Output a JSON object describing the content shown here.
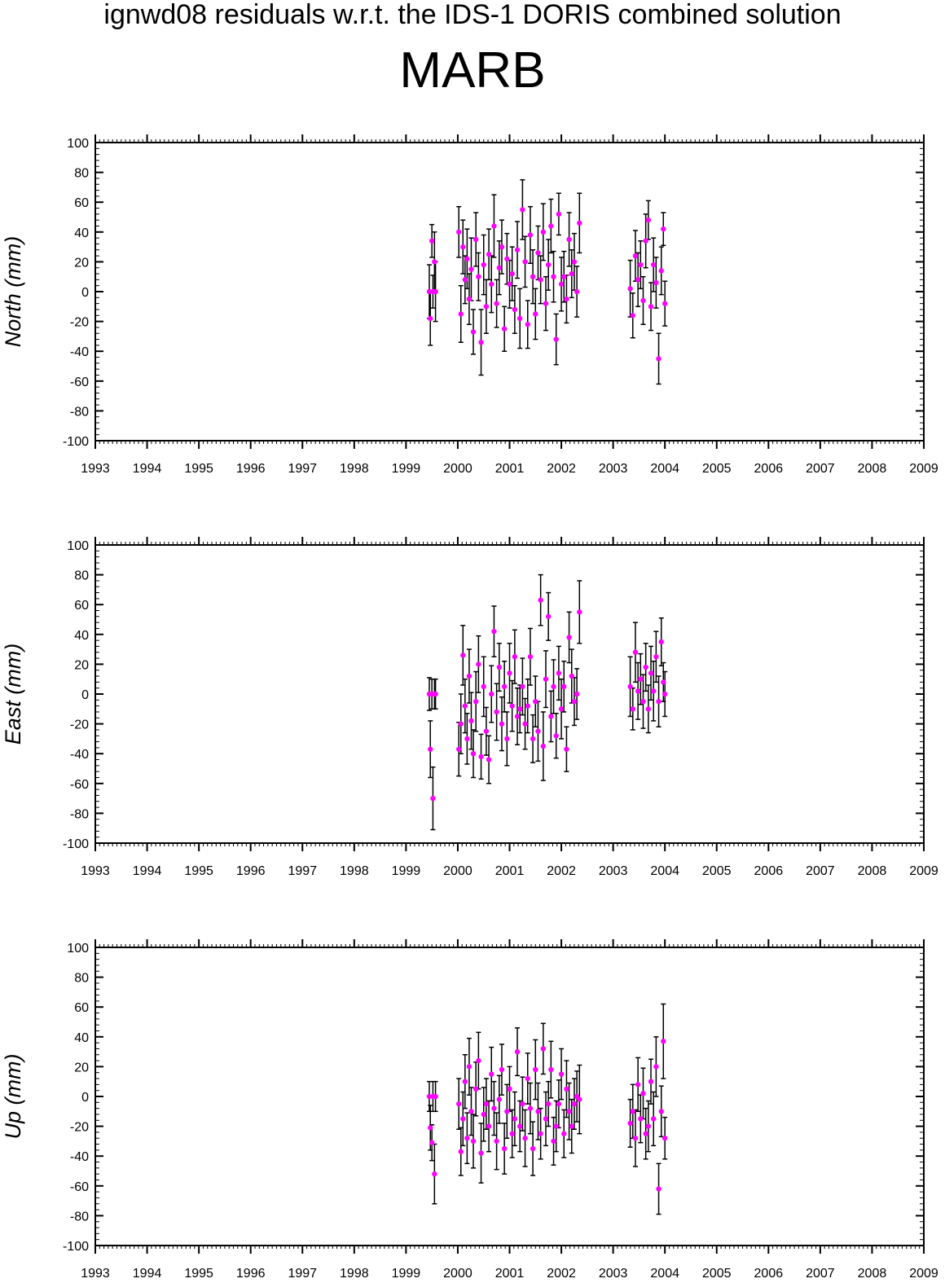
{
  "title": "ignwd08 residuals w.r.t. the IDS-1 DORIS combined solution",
  "station": "MARB",
  "colors": {
    "point": "#ff00ff",
    "errorbar": "#000000",
    "axis": "#000000"
  },
  "chart_data": [
    {
      "type": "scatter",
      "ylabel": "North (mm)",
      "xlim": [
        1993,
        2009
      ],
      "ylim": [
        -100,
        100
      ],
      "xticks": [
        "1993",
        "1994",
        "1995",
        "1996",
        "1997",
        "1998",
        "1999",
        "2000",
        "2001",
        "2002",
        "2003",
        "2004",
        "2005",
        "2006",
        "2007",
        "2008",
        "2009"
      ],
      "yticks": [
        "100",
        "80",
        "60",
        "40",
        "20",
        "0",
        "-20",
        "-40",
        "-60",
        "-80",
        "-100"
      ],
      "error_bars": true,
      "series": [
        {
          "x": [
            1999.45,
            1999.47,
            1999.5,
            1999.52,
            1999.55,
            1999.57,
            2000.02,
            2000.06,
            2000.1,
            2000.14,
            2000.18,
            2000.22,
            2000.26,
            2000.3,
            2000.35,
            2000.4,
            2000.45,
            2000.5,
            2000.55,
            2000.6,
            2000.65,
            2000.7,
            2000.75,
            2000.8,
            2000.85,
            2000.9,
            2000.95,
            2001.0,
            2001.05,
            2001.1,
            2001.15,
            2001.2,
            2001.25,
            2001.3,
            2001.35,
            2001.4,
            2001.45,
            2001.5,
            2001.55,
            2001.6,
            2001.65,
            2001.7,
            2001.75,
            2001.8,
            2001.85,
            2001.9,
            2001.95,
            2002.0,
            2002.05,
            2002.1,
            2002.15,
            2002.2,
            2002.25,
            2002.3,
            2002.35,
            2003.33,
            2003.38,
            2003.43,
            2003.48,
            2003.53,
            2003.58,
            2003.63,
            2003.68,
            2003.73,
            2003.78,
            2003.83,
            2003.88,
            2003.93,
            2003.97,
            2004.0
          ],
          "y": [
            0,
            -18,
            34,
            0,
            20,
            0,
            40,
            -15,
            30,
            8,
            22,
            -5,
            15,
            -27,
            35,
            10,
            -34,
            18,
            -10,
            25,
            5,
            44,
            -8,
            16,
            30,
            -25,
            22,
            5,
            12,
            -12,
            28,
            -18,
            55,
            20,
            -22,
            38,
            10,
            -15,
            26,
            8,
            40,
            -8,
            18,
            44,
            10,
            -32,
            52,
            5,
            10,
            -5,
            35,
            12,
            20,
            0,
            46,
            2,
            -16,
            24,
            8,
            18,
            -6,
            34,
            48,
            -10,
            18,
            6,
            -45,
            14,
            42,
            -8
          ],
          "err": [
            18,
            18,
            11,
            11,
            20,
            20,
            17,
            19,
            18,
            16,
            20,
            17,
            21,
            15,
            18,
            16,
            22,
            20,
            18,
            17,
            19,
            21,
            16,
            18,
            18,
            15,
            17,
            16,
            18,
            16,
            19,
            20,
            20,
            17,
            16,
            19,
            18,
            17,
            18,
            16,
            19,
            18,
            17,
            18,
            17,
            17,
            14,
            18,
            17,
            16,
            18,
            16,
            19,
            17,
            20,
            19,
            15,
            17,
            18,
            16,
            16,
            18,
            13,
            16,
            18,
            17,
            17,
            16,
            11,
            15
          ]
        }
      ]
    },
    {
      "type": "scatter",
      "ylabel": "East (mm)",
      "xlim": [
        1993,
        2009
      ],
      "ylim": [
        -100,
        100
      ],
      "xticks": [
        "1993",
        "1994",
        "1995",
        "1996",
        "1997",
        "1998",
        "1999",
        "2000",
        "2001",
        "2002",
        "2003",
        "2004",
        "2005",
        "2006",
        "2007",
        "2008",
        "2009"
      ],
      "yticks": [
        "100",
        "80",
        "60",
        "40",
        "20",
        "0",
        "-20",
        "-40",
        "-60",
        "-80",
        "-100"
      ],
      "error_bars": true,
      "series": [
        {
          "x": [
            1999.45,
            1999.47,
            1999.5,
            1999.52,
            1999.55,
            1999.57,
            2000.02,
            2000.06,
            2000.1,
            2000.14,
            2000.18,
            2000.22,
            2000.26,
            2000.3,
            2000.35,
            2000.4,
            2000.45,
            2000.5,
            2000.55,
            2000.6,
            2000.65,
            2000.7,
            2000.75,
            2000.8,
            2000.85,
            2000.9,
            2000.95,
            2001.0,
            2001.05,
            2001.1,
            2001.15,
            2001.2,
            2001.25,
            2001.3,
            2001.35,
            2001.4,
            2001.45,
            2001.5,
            2001.55,
            2001.6,
            2001.65,
            2001.7,
            2001.75,
            2001.8,
            2001.85,
            2001.9,
            2001.95,
            2002.0,
            2002.05,
            2002.1,
            2002.15,
            2002.2,
            2002.25,
            2002.3,
            2002.35,
            2003.33,
            2003.38,
            2003.43,
            2003.48,
            2003.53,
            2003.58,
            2003.63,
            2003.68,
            2003.73,
            2003.78,
            2003.83,
            2003.88,
            2003.93,
            2003.97,
            2004.0
          ],
          "y": [
            0,
            -37,
            0,
            -70,
            0,
            0,
            -37,
            -20,
            26,
            -8,
            -30,
            12,
            -18,
            -40,
            -5,
            20,
            -42,
            5,
            -25,
            -44,
            0,
            42,
            -12,
            18,
            -20,
            5,
            -30,
            14,
            -8,
            25,
            -15,
            -10,
            5,
            -20,
            -8,
            25,
            -30,
            -5,
            -25,
            63,
            -35,
            10,
            52,
            -15,
            5,
            -28,
            14,
            -10,
            5,
            -37,
            38,
            12,
            -5,
            0,
            55,
            5,
            -10,
            28,
            2,
            10,
            -5,
            18,
            -10,
            14,
            2,
            25,
            -5,
            35,
            8,
            0
          ],
          "err": [
            11,
            19,
            10,
            21,
            10,
            10,
            18,
            20,
            20,
            18,
            17,
            18,
            19,
            16,
            20,
            19,
            15,
            20,
            16,
            16,
            19,
            17,
            19,
            16,
            18,
            17,
            18,
            20,
            17,
            18,
            19,
            16,
            19,
            17,
            18,
            19,
            16,
            17,
            20,
            17,
            23,
            19,
            16,
            17,
            18,
            15,
            18,
            20,
            17,
            15,
            17,
            18,
            16,
            17,
            21,
            20,
            14,
            20,
            19,
            17,
            18,
            16,
            16,
            18,
            20,
            17,
            17,
            16,
            13,
            15
          ]
        }
      ]
    },
    {
      "type": "scatter",
      "ylabel": "Up (mm)",
      "xlim": [
        1993,
        2009
      ],
      "ylim": [
        -100,
        100
      ],
      "xticks": [
        "1993",
        "1994",
        "1995",
        "1996",
        "1997",
        "1998",
        "1999",
        "2000",
        "2001",
        "2002",
        "2003",
        "2004",
        "2005",
        "2006",
        "2007",
        "2008",
        "2009"
      ],
      "yticks": [
        "100",
        "80",
        "60",
        "40",
        "20",
        "0",
        "-20",
        "-40",
        "-60",
        "-80",
        "-100"
      ],
      "error_bars": true,
      "series": [
        {
          "x": [
            1999.45,
            1999.47,
            1999.5,
            1999.52,
            1999.55,
            1999.57,
            2000.02,
            2000.06,
            2000.1,
            2000.14,
            2000.18,
            2000.22,
            2000.26,
            2000.3,
            2000.35,
            2000.4,
            2000.45,
            2000.5,
            2000.55,
            2000.6,
            2000.65,
            2000.7,
            2000.75,
            2000.8,
            2000.85,
            2000.9,
            2000.95,
            2001.0,
            2001.05,
            2001.1,
            2001.15,
            2001.2,
            2001.25,
            2001.3,
            2001.35,
            2001.4,
            2001.45,
            2001.5,
            2001.55,
            2001.6,
            2001.65,
            2001.7,
            2001.75,
            2001.8,
            2001.85,
            2001.9,
            2001.95,
            2002.0,
            2002.05,
            2002.1,
            2002.15,
            2002.2,
            2002.25,
            2002.3,
            2002.35,
            2003.33,
            2003.38,
            2003.43,
            2003.48,
            2003.53,
            2003.58,
            2003.63,
            2003.68,
            2003.73,
            2003.78,
            2003.83,
            2003.88,
            2003.93,
            2003.97,
            2004.0
          ],
          "y": [
            0,
            -21,
            -31,
            0,
            -52,
            0,
            -5,
            -37,
            -15,
            10,
            -28,
            20,
            -10,
            -30,
            5,
            24,
            -38,
            -12,
            -5,
            -20,
            15,
            -8,
            -30,
            -2,
            18,
            -35,
            -10,
            5,
            -25,
            -15,
            30,
            -20,
            -5,
            -28,
            12,
            -8,
            -35,
            18,
            -10,
            -25,
            32,
            -15,
            -5,
            18,
            -30,
            -20,
            -5,
            15,
            -25,
            5,
            -10,
            -20,
            -5,
            0,
            -2,
            -18,
            -10,
            -28,
            8,
            -15,
            2,
            -25,
            -20,
            10,
            -15,
            20,
            -62,
            -10,
            37,
            -28
          ],
          "err": [
            10,
            15,
            12,
            10,
            20,
            10,
            17,
            16,
            18,
            18,
            17,
            19,
            16,
            18,
            18,
            19,
            20,
            18,
            17,
            17,
            18,
            18,
            19,
            16,
            17,
            17,
            18,
            15,
            16,
            18,
            16,
            17,
            18,
            19,
            17,
            17,
            18,
            20,
            19,
            17,
            17,
            18,
            15,
            19,
            16,
            17,
            16,
            17,
            16,
            19,
            19,
            18,
            17,
            17,
            23,
            16,
            18,
            19,
            18,
            16,
            17,
            17,
            17,
            15,
            18,
            20,
            17,
            17,
            25,
            14
          ]
        }
      ]
    }
  ]
}
